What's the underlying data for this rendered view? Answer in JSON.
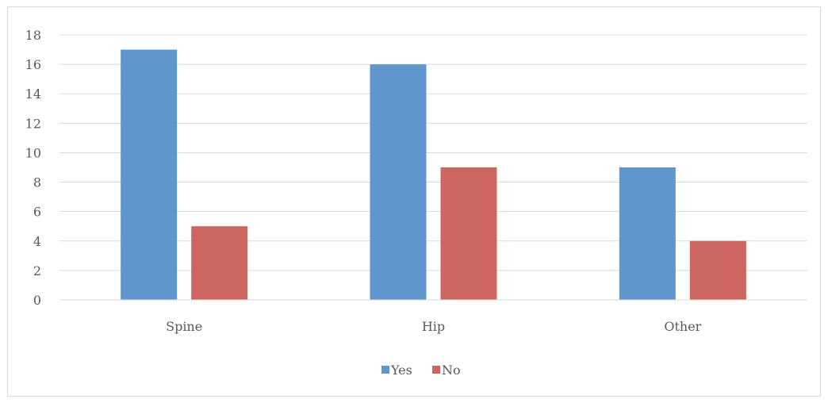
{
  "chart_data": {
    "type": "bar",
    "categories": [
      "Spine",
      "Hip",
      "Other"
    ],
    "series": [
      {
        "name": "Yes",
        "values": [
          17,
          16,
          9
        ],
        "color": "#5f96cb"
      },
      {
        "name": "No",
        "values": [
          5,
          9,
          4
        ],
        "color": "#cd6660"
      }
    ],
    "ylim": [
      0,
      18
    ],
    "yticks": [
      0,
      2,
      4,
      6,
      8,
      10,
      12,
      14,
      16,
      18
    ],
    "grid": true,
    "legend": "bottom",
    "gridline_color": "#d9d9d9",
    "axis_color": "#d9d9d9"
  }
}
